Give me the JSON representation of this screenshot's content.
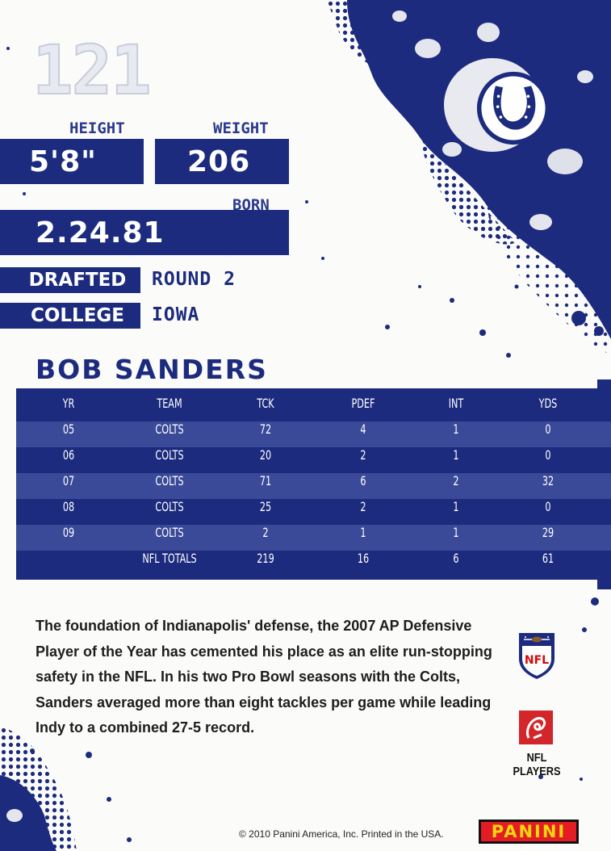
{
  "card": {
    "number": "121",
    "height_label": "HEIGHT",
    "height_value": "5'8\"",
    "weight_label": "WEIGHT",
    "weight_value": "206",
    "born_label": "BORN",
    "born_value": "2.24.81",
    "drafted_label": "DRAFTED",
    "drafted_value": "ROUND 2",
    "college_label": "COLLEGE",
    "college_value": "IOWA",
    "player_name": "BOB SANDERS",
    "team_logo": "colts-horseshoe-logo",
    "accent_color": "#1c2b7e"
  },
  "stats": {
    "headers": [
      "YR",
      "TEAM",
      "TCK",
      "PDEF",
      "INT",
      "YDS"
    ],
    "rows": [
      [
        "05",
        "COLTS",
        "72",
        "4",
        "1",
        "0"
      ],
      [
        "06",
        "COLTS",
        "20",
        "2",
        "1",
        "0"
      ],
      [
        "07",
        "COLTS",
        "71",
        "6",
        "2",
        "32"
      ],
      [
        "08",
        "COLTS",
        "25",
        "2",
        "1",
        "0"
      ],
      [
        "09",
        "COLTS",
        "2",
        "1",
        "1",
        "29"
      ]
    ],
    "totals": [
      "",
      "NFL TOTALS",
      "219",
      "16",
      "6",
      "61"
    ]
  },
  "bio": "The foundation of Indianapolis' defense, the 2007 AP Defensive Player of the Year has cemented his place as an elite run-stopping safety in the NFL. In his two Pro Bowl seasons with the Colts, Sanders averaged more than eight tackles per game while leading Indy to a combined 27-5 record.",
  "footer": {
    "nfl_logo": "nfl-shield-logo",
    "nfl_logo_text": "NFL",
    "nfl_players_logo": "nfl-players-logo",
    "nfl_players_label": "NFL PLAYERS",
    "copyright": "© 2010 Panini America, Inc. Printed in the USA.",
    "brand": "PANINI",
    "brand_color": "#e31d23"
  }
}
